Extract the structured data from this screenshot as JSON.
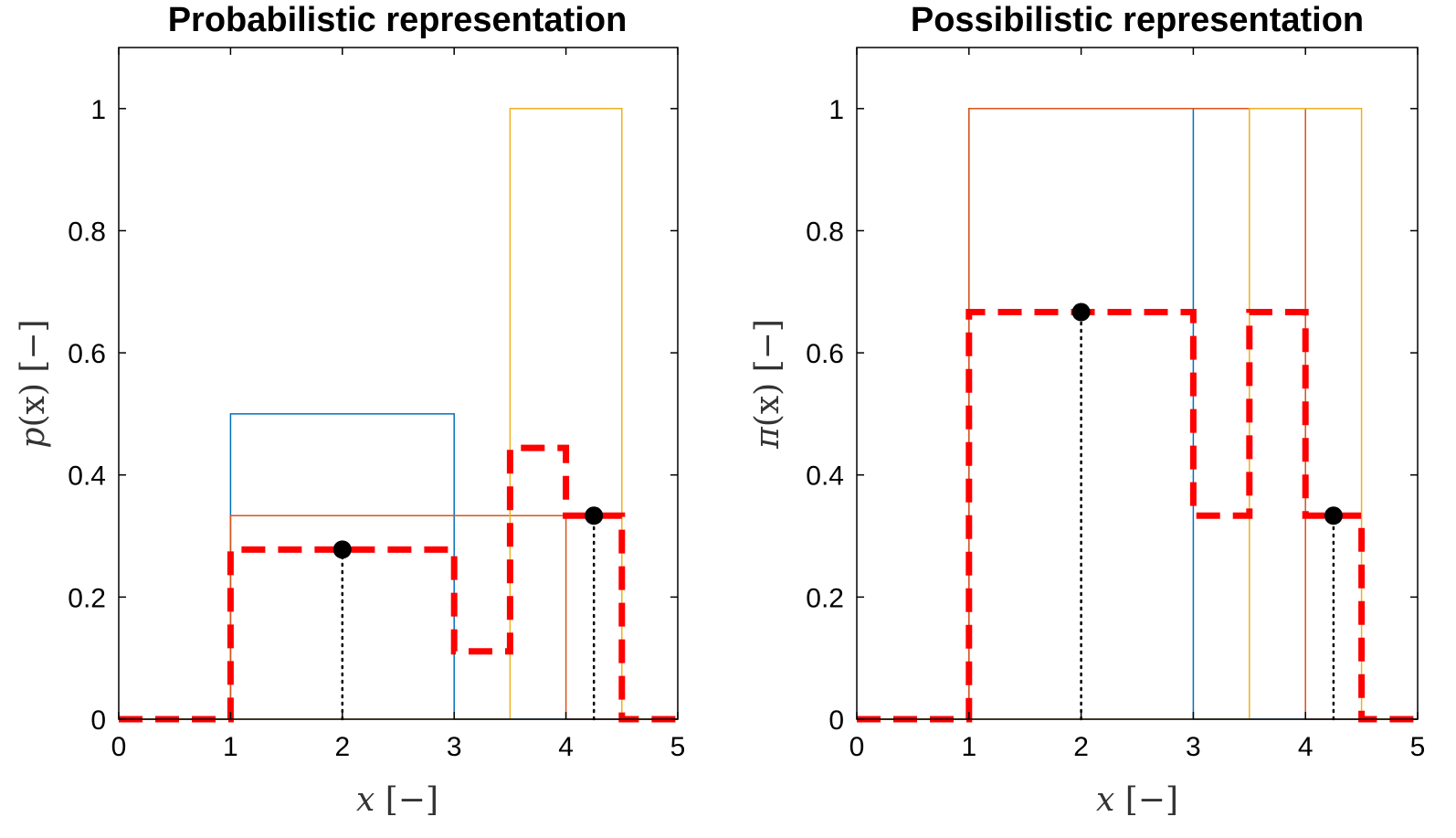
{
  "chart_data": [
    {
      "type": "line",
      "title": "Probabilistic representation",
      "xlabel_var": "x",
      "xlabel_unit": "[−]",
      "ylabel_var": "p",
      "ylabel_arg": "(x)",
      "ylabel_unit": "[−]",
      "xlim": [
        0,
        5
      ],
      "ylim": [
        0,
        1.1
      ],
      "xticks": [
        0,
        1,
        2,
        3,
        4,
        5
      ],
      "xtick_labels": [
        "0",
        "1",
        "2",
        "3",
        "4",
        "5"
      ],
      "yticks": [
        0,
        0.2,
        0.4,
        0.6,
        0.8,
        1
      ],
      "ytick_labels": [
        "0",
        "0.2",
        "0.4",
        "0.6",
        "0.8",
        "1"
      ],
      "grid": false,
      "series": [
        {
          "color": "#0072BD",
          "width": 1.5,
          "style": "solid",
          "x": [
            0,
            1,
            1,
            3,
            3,
            5
          ],
          "y": [
            0,
            0,
            0.5,
            0.5,
            0,
            0
          ]
        },
        {
          "color": "#D95319",
          "width": 1.5,
          "style": "solid",
          "x": [
            0,
            1,
            1,
            4,
            4,
            5
          ],
          "y": [
            0,
            0,
            0.3333,
            0.3333,
            0,
            0
          ]
        },
        {
          "color": "#EDB120",
          "width": 1.5,
          "style": "solid",
          "x": [
            0,
            3.5,
            3.5,
            4.5,
            4.5,
            5
          ],
          "y": [
            0,
            0,
            1,
            1,
            0,
            0
          ]
        },
        {
          "color": "#FF0000",
          "width": 7,
          "style": "dashed",
          "x": [
            0,
            1,
            1,
            3,
            3,
            3.5,
            3.5,
            4,
            4,
            4.5,
            4.5,
            5
          ],
          "y": [
            0,
            0,
            0.2778,
            0.2778,
            0.1111,
            0.1111,
            0.4444,
            0.4444,
            0.3333,
            0.3333,
            0,
            0
          ]
        }
      ],
      "markers": [
        {
          "x": 2,
          "y": 0.2778
        },
        {
          "x": 4.25,
          "y": 0.3333
        }
      ]
    },
    {
      "type": "line",
      "title": "Possibilistic representation",
      "xlabel_var": "x",
      "xlabel_unit": "[−]",
      "ylabel_var": "π",
      "ylabel_arg": "(x)",
      "ylabel_unit": "[−]",
      "xlim": [
        0,
        5
      ],
      "ylim": [
        0,
        1.1
      ],
      "xticks": [
        0,
        1,
        2,
        3,
        4,
        5
      ],
      "xtick_labels": [
        "0",
        "1",
        "2",
        "3",
        "4",
        "5"
      ],
      "yticks": [
        0,
        0.2,
        0.4,
        0.6,
        0.8,
        1
      ],
      "ytick_labels": [
        "0",
        "0.2",
        "0.4",
        "0.6",
        "0.8",
        "1"
      ],
      "grid": false,
      "series": [
        {
          "color": "#0072BD",
          "width": 1.5,
          "style": "solid",
          "x": [
            0,
            1,
            1,
            3,
            3,
            5
          ],
          "y": [
            0,
            0,
            1,
            1,
            0,
            0
          ]
        },
        {
          "color": "#D95319",
          "width": 1.5,
          "style": "solid",
          "x": [
            0,
            1,
            1,
            4,
            4,
            5
          ],
          "y": [
            0,
            0,
            1,
            1,
            0,
            0
          ]
        },
        {
          "color": "#EDB120",
          "width": 1.5,
          "style": "solid",
          "x": [
            0,
            3.5,
            3.5,
            4.5,
            4.5,
            5
          ],
          "y": [
            0,
            0,
            1,
            1,
            0,
            0
          ]
        },
        {
          "color": "#FF0000",
          "width": 7,
          "style": "dashed",
          "x": [
            0,
            1,
            1,
            3,
            3,
            3.5,
            3.5,
            4,
            4,
            4.5,
            4.5,
            5
          ],
          "y": [
            0,
            0,
            0.6667,
            0.6667,
            0.3333,
            0.3333,
            0.6667,
            0.6667,
            0.3333,
            0.3333,
            0,
            0
          ]
        }
      ],
      "markers": [
        {
          "x": 2,
          "y": 0.6667
        },
        {
          "x": 4.25,
          "y": 0.3333
        }
      ]
    }
  ]
}
